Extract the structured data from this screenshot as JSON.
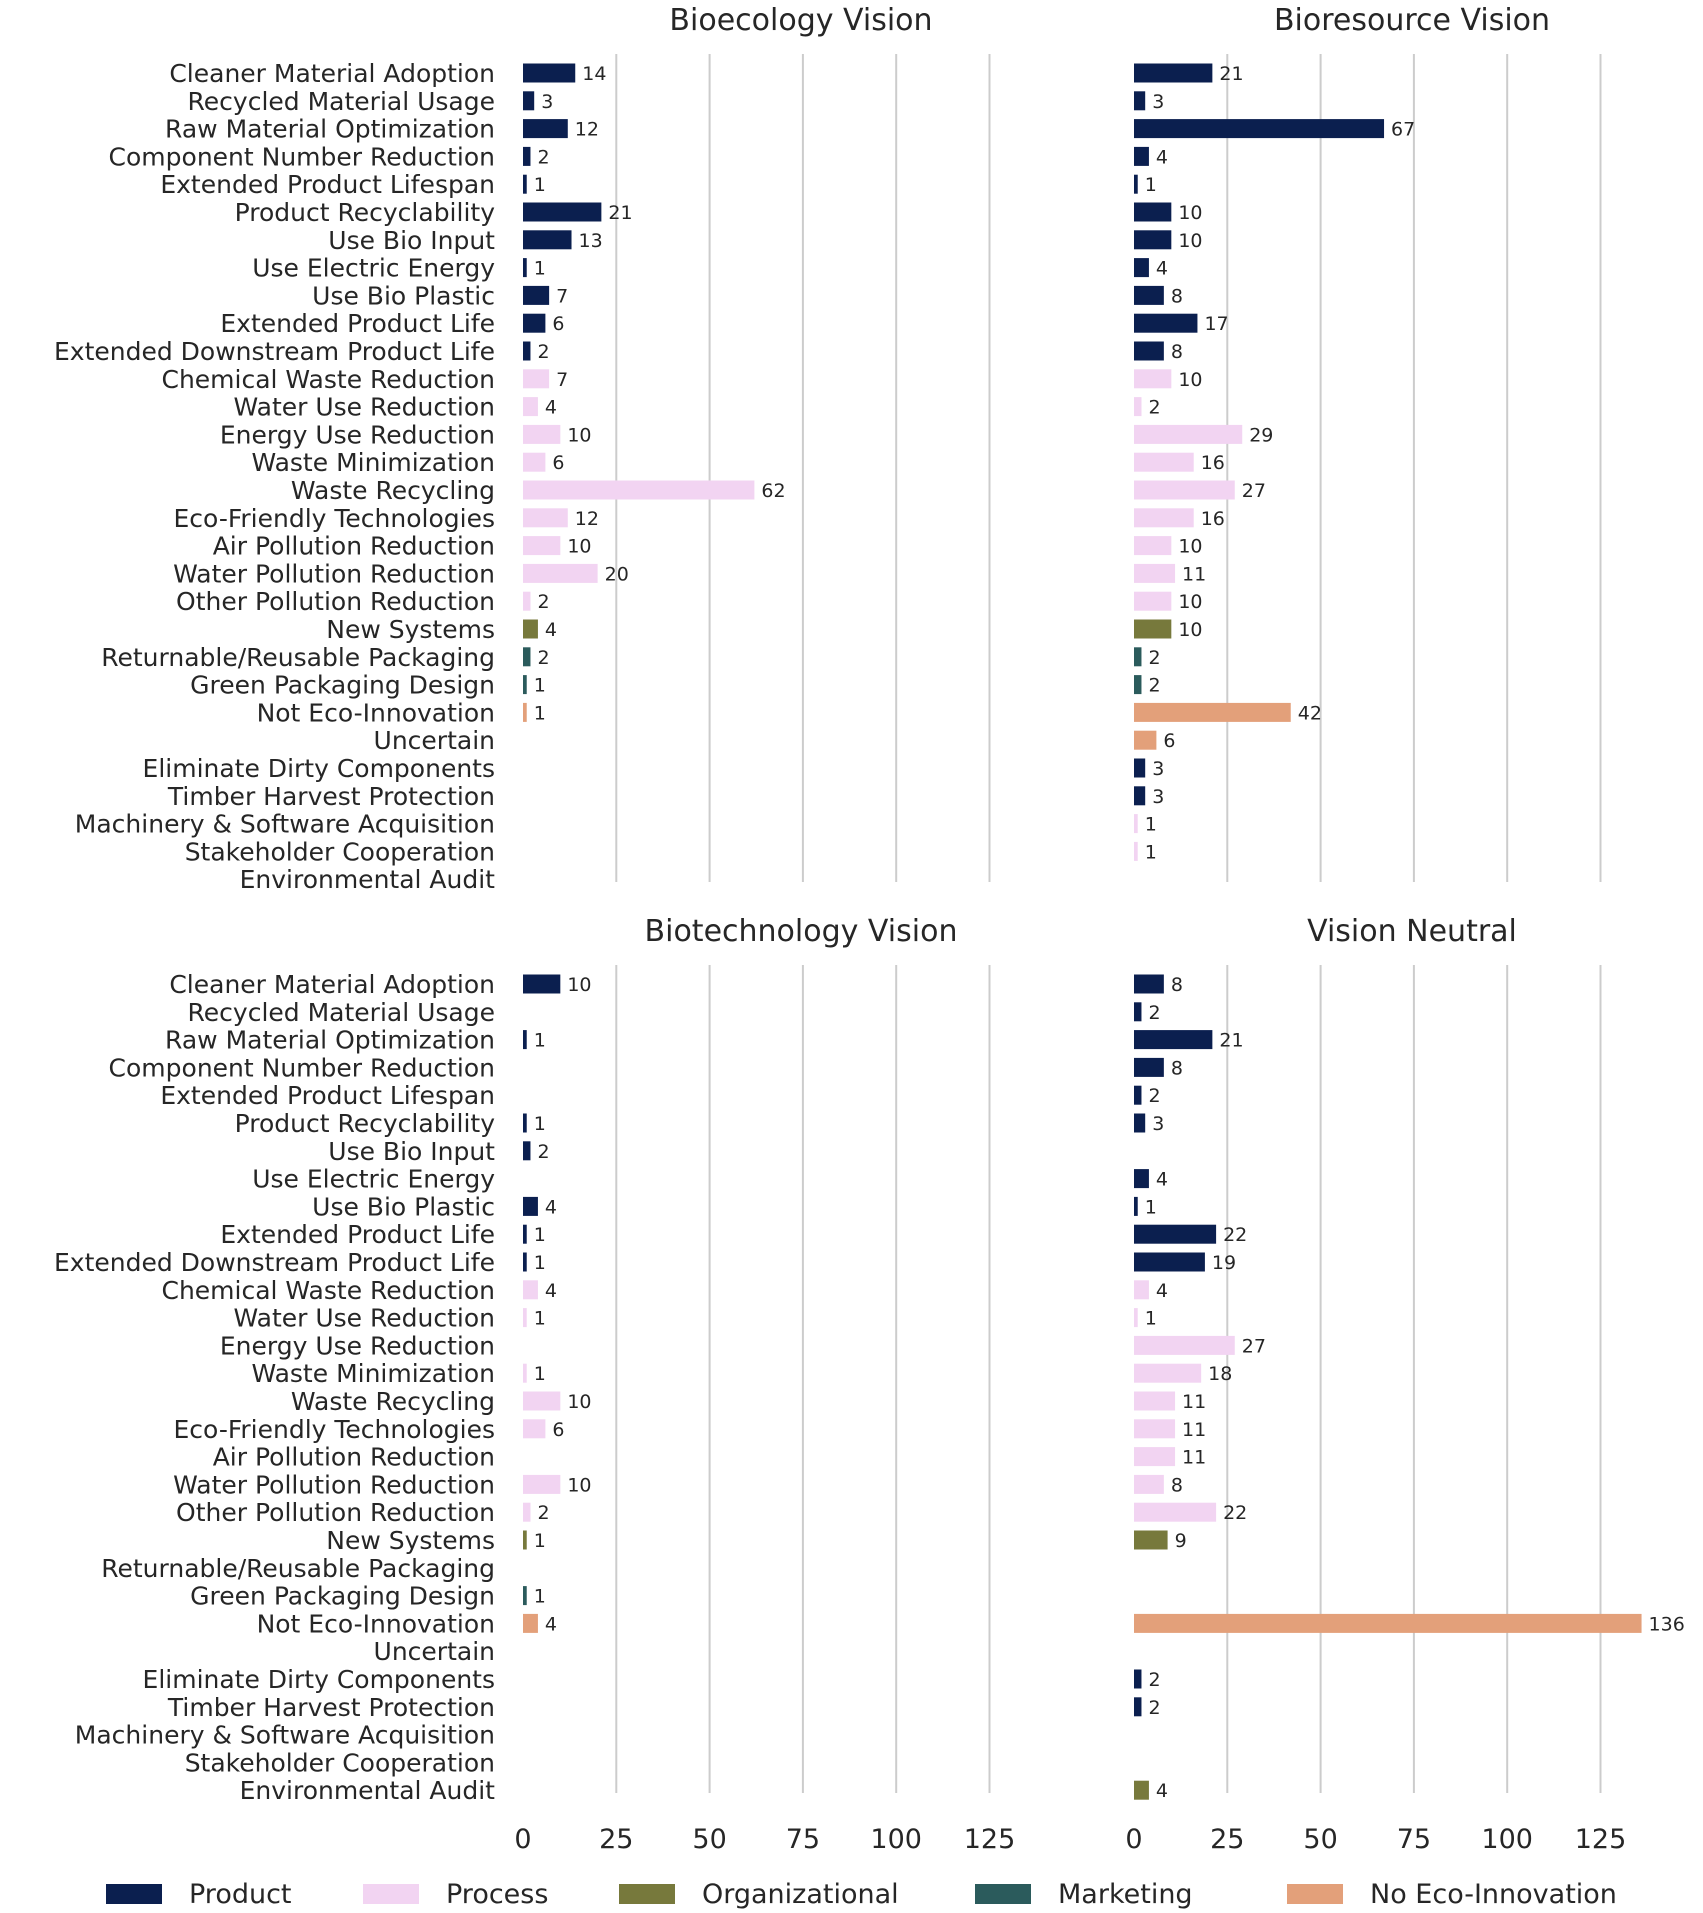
{
  "chart_data": {
    "type": "bar",
    "orientation": "horizontal",
    "layout": "2x2 small multiples, shared x-axis per column",
    "categories": [
      "Cleaner Material Adoption",
      "Recycled Material Usage",
      "Raw Material Optimization",
      "Component Number Reduction",
      "Extended Product Lifespan",
      "Product Recyclability",
      "Use Bio Input",
      "Use Electric Energy",
      "Use Bio Plastic",
      "Extended Product Life",
      "Extended Downstream Product Life",
      "Chemical Waste Reduction",
      "Water Use Reduction",
      "Energy Use Reduction",
      "Waste Minimization",
      "Waste Recycling",
      "Eco-Friendly Technologies",
      "Air Pollution Reduction",
      "Water Pollution Reduction",
      "Other Pollution Reduction",
      "New Systems",
      "Returnable/Reusable Packaging",
      "Green Packaging Design",
      "Not Eco-Innovation",
      "Uncertain",
      "Eliminate Dirty Components",
      "Timber Harvest Protection",
      "Machinery & Software Acquisition",
      "Stakeholder Cooperation",
      "Environmental Audit"
    ],
    "category_group": [
      "Product",
      "Product",
      "Product",
      "Product",
      "Product",
      "Product",
      "Product",
      "Product",
      "Product",
      "Product",
      "Product",
      "Process",
      "Process",
      "Process",
      "Process",
      "Process",
      "Process",
      "Process",
      "Process",
      "Process",
      "Organizational",
      "Marketing",
      "Marketing",
      "No Eco-Innovation",
      "No Eco-Innovation",
      "Product",
      "Product",
      "Process",
      "Process",
      "Organizational"
    ],
    "panels": [
      {
        "title": "Bioecology Vision",
        "values": [
          14,
          3,
          12,
          2,
          1,
          21,
          13,
          1,
          7,
          6,
          2,
          7,
          4,
          10,
          6,
          62,
          12,
          10,
          20,
          2,
          4,
          2,
          1,
          1,
          null,
          null,
          null,
          null,
          null,
          null
        ]
      },
      {
        "title": "Bioresource Vision",
        "values": [
          21,
          3,
          67,
          4,
          1,
          10,
          10,
          4,
          8,
          17,
          8,
          10,
          2,
          29,
          16,
          27,
          16,
          10,
          11,
          10,
          10,
          2,
          2,
          42,
          6,
          3,
          3,
          1,
          1,
          null
        ]
      },
      {
        "title": "Biotechnology Vision",
        "values": [
          10,
          null,
          1,
          null,
          null,
          1,
          2,
          null,
          4,
          1,
          1,
          4,
          1,
          null,
          1,
          10,
          6,
          null,
          10,
          2,
          1,
          null,
          1,
          4,
          null,
          null,
          null,
          null,
          null,
          null
        ]
      },
      {
        "title": "Vision Neutral",
        "values": [
          8,
          2,
          21,
          8,
          2,
          3,
          null,
          4,
          1,
          22,
          19,
          4,
          1,
          27,
          18,
          11,
          11,
          11,
          8,
          22,
          9,
          null,
          null,
          136,
          null,
          2,
          2,
          null,
          null,
          4
        ]
      }
    ],
    "xlim": [
      0,
      140
    ],
    "xticks": [
      "0",
      "25",
      "50",
      "75",
      "100",
      "125"
    ],
    "grid": "vertical gridlines",
    "legend": {
      "placement": "bottom",
      "entries": [
        {
          "name": "Product",
          "color": "#0b1f4f"
        },
        {
          "name": "Process",
          "color": "#f2d4f2"
        },
        {
          "name": "Organizational",
          "color": "#77793c"
        },
        {
          "name": "Marketing",
          "color": "#2b5b5c"
        },
        {
          "name": "No Eco-Innovation",
          "color": "#e3a07a"
        }
      ]
    }
  }
}
